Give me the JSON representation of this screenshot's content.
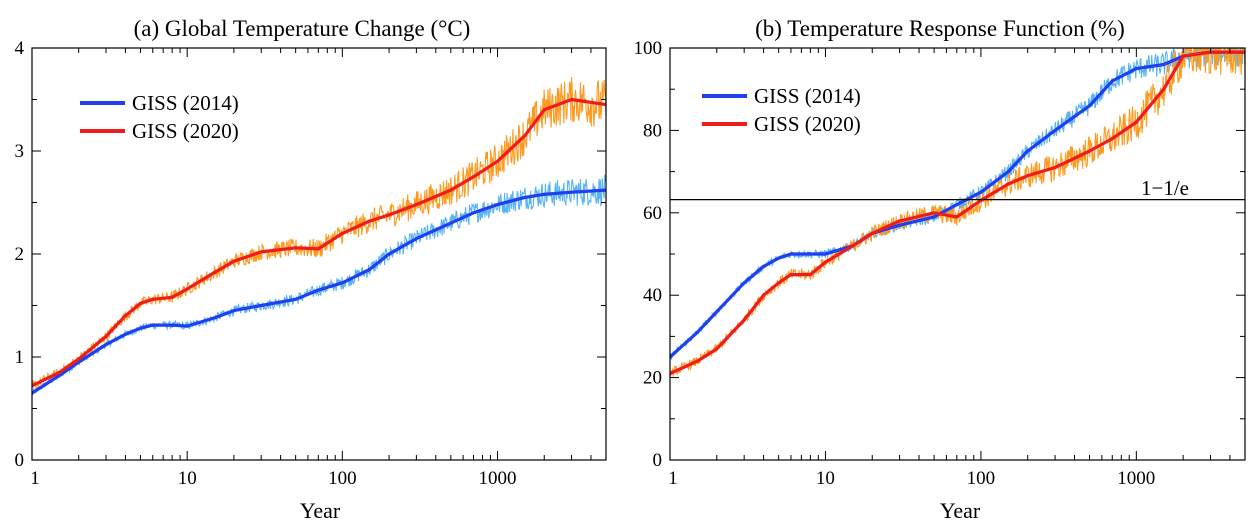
{
  "colors": {
    "giss2014": "#1f3ff0",
    "giss2014_raw": "#59b4f5",
    "giss2020": "#ee1c1c",
    "giss2020_raw": "#ff9a1e"
  },
  "chart_data": [
    {
      "type": "line",
      "title": "(a) Global Temperature Change (°C)",
      "xlabel": "Year",
      "ylabel": "",
      "xscale": "log",
      "xlim": [
        1,
        5000
      ],
      "ylim": [
        0,
        4
      ],
      "xticks": [
        1,
        10,
        100,
        1000
      ],
      "xtick_labels": [
        "1",
        "10",
        "100",
        "1000"
      ],
      "yticks": [
        0,
        1,
        2,
        3,
        4
      ],
      "ytick_labels": [
        "0",
        "1",
        "2",
        "3",
        "4"
      ],
      "grid": false,
      "legend_position": "top-left",
      "series": [
        {
          "name": "GISS (2014)",
          "color_key": "giss2014",
          "x": [
            1,
            1.5,
            2,
            3,
            4,
            5,
            6,
            8,
            10,
            15,
            20,
            30,
            50,
            70,
            100,
            150,
            200,
            300,
            500,
            700,
            1000,
            1500,
            2000,
            3000,
            5000
          ],
          "y": [
            0.65,
            0.82,
            0.95,
            1.12,
            1.22,
            1.28,
            1.31,
            1.31,
            1.3,
            1.38,
            1.45,
            1.5,
            1.56,
            1.65,
            1.72,
            1.85,
            2.0,
            2.15,
            2.3,
            2.4,
            2.48,
            2.55,
            2.58,
            2.6,
            2.62
          ]
        },
        {
          "name": "GISS (2020)",
          "color_key": "giss2020",
          "x": [
            1,
            1.5,
            2,
            3,
            4,
            5,
            6,
            8,
            10,
            15,
            20,
            30,
            50,
            70,
            100,
            150,
            200,
            300,
            500,
            700,
            1000,
            1500,
            2000,
            3000,
            5000
          ],
          "y": [
            0.72,
            0.85,
            0.98,
            1.2,
            1.4,
            1.52,
            1.56,
            1.58,
            1.66,
            1.82,
            1.93,
            2.02,
            2.06,
            2.05,
            2.2,
            2.32,
            2.38,
            2.48,
            2.62,
            2.75,
            2.9,
            3.15,
            3.4,
            3.5,
            3.45
          ]
        }
      ]
    },
    {
      "type": "line",
      "title": "(b) Temperature Response Function (%)",
      "xlabel": "Year",
      "ylabel": "",
      "xscale": "log",
      "xlim": [
        1,
        5000
      ],
      "ylim": [
        0,
        100
      ],
      "xticks": [
        1,
        10,
        100,
        1000
      ],
      "xtick_labels": [
        "1",
        "10",
        "100",
        "1000"
      ],
      "yticks": [
        0,
        20,
        40,
        60,
        80,
        100
      ],
      "ytick_labels": [
        "0",
        "20",
        "40",
        "60",
        "80",
        "100"
      ],
      "grid": false,
      "legend_position": "top-left",
      "reference_line": {
        "y": 63.2,
        "label": "1−1/e"
      },
      "series": [
        {
          "name": "GISS (2014)",
          "color_key": "giss2014",
          "x": [
            1,
            1.5,
            2,
            3,
            4,
            5,
            6,
            8,
            10,
            15,
            20,
            30,
            50,
            70,
            100,
            150,
            200,
            300,
            500,
            700,
            1000,
            1500,
            2000,
            3000,
            5000
          ],
          "y": [
            25,
            31,
            36,
            43,
            47,
            49,
            50,
            50,
            50,
            52,
            55,
            57,
            59,
            62,
            65,
            70,
            75,
            80,
            86,
            92,
            95,
            96,
            98,
            99,
            99
          ]
        },
        {
          "name": "GISS (2020)",
          "color_key": "giss2020",
          "x": [
            1,
            1.5,
            2,
            3,
            4,
            5,
            6,
            8,
            10,
            15,
            20,
            30,
            50,
            70,
            100,
            150,
            200,
            300,
            500,
            700,
            1000,
            1500,
            2000,
            3000,
            5000
          ],
          "y": [
            21,
            24,
            27,
            34,
            40,
            43,
            45,
            45,
            48,
            52,
            55,
            58,
            60,
            59,
            63,
            67,
            69,
            71,
            75,
            78,
            82,
            90,
            98,
            99,
            99
          ]
        }
      ]
    }
  ]
}
